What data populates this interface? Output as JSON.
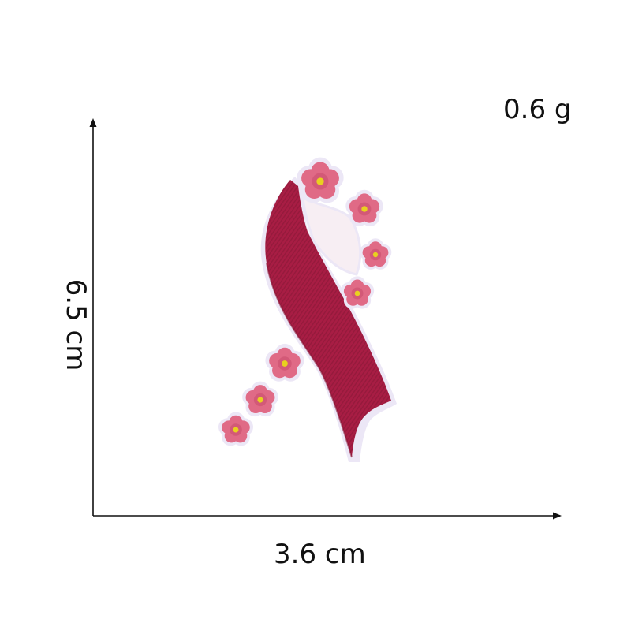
{
  "product": {
    "weight_label": "0.6 g",
    "width_label": "3.6 cm",
    "height_label": "6.5 cm",
    "subject": "awareness-ribbon-embroidered-patch",
    "colors": {
      "ribbon": "#a81d44",
      "ribbon_dark": "#8a1535",
      "ribbon_inner": "#f7eef3",
      "flower_petal": "#e06a86",
      "flower_petal_dark": "#c94b6b",
      "flower_center": "#e9d01f",
      "outline": "#ece7f6",
      "axis": "#111111"
    }
  }
}
